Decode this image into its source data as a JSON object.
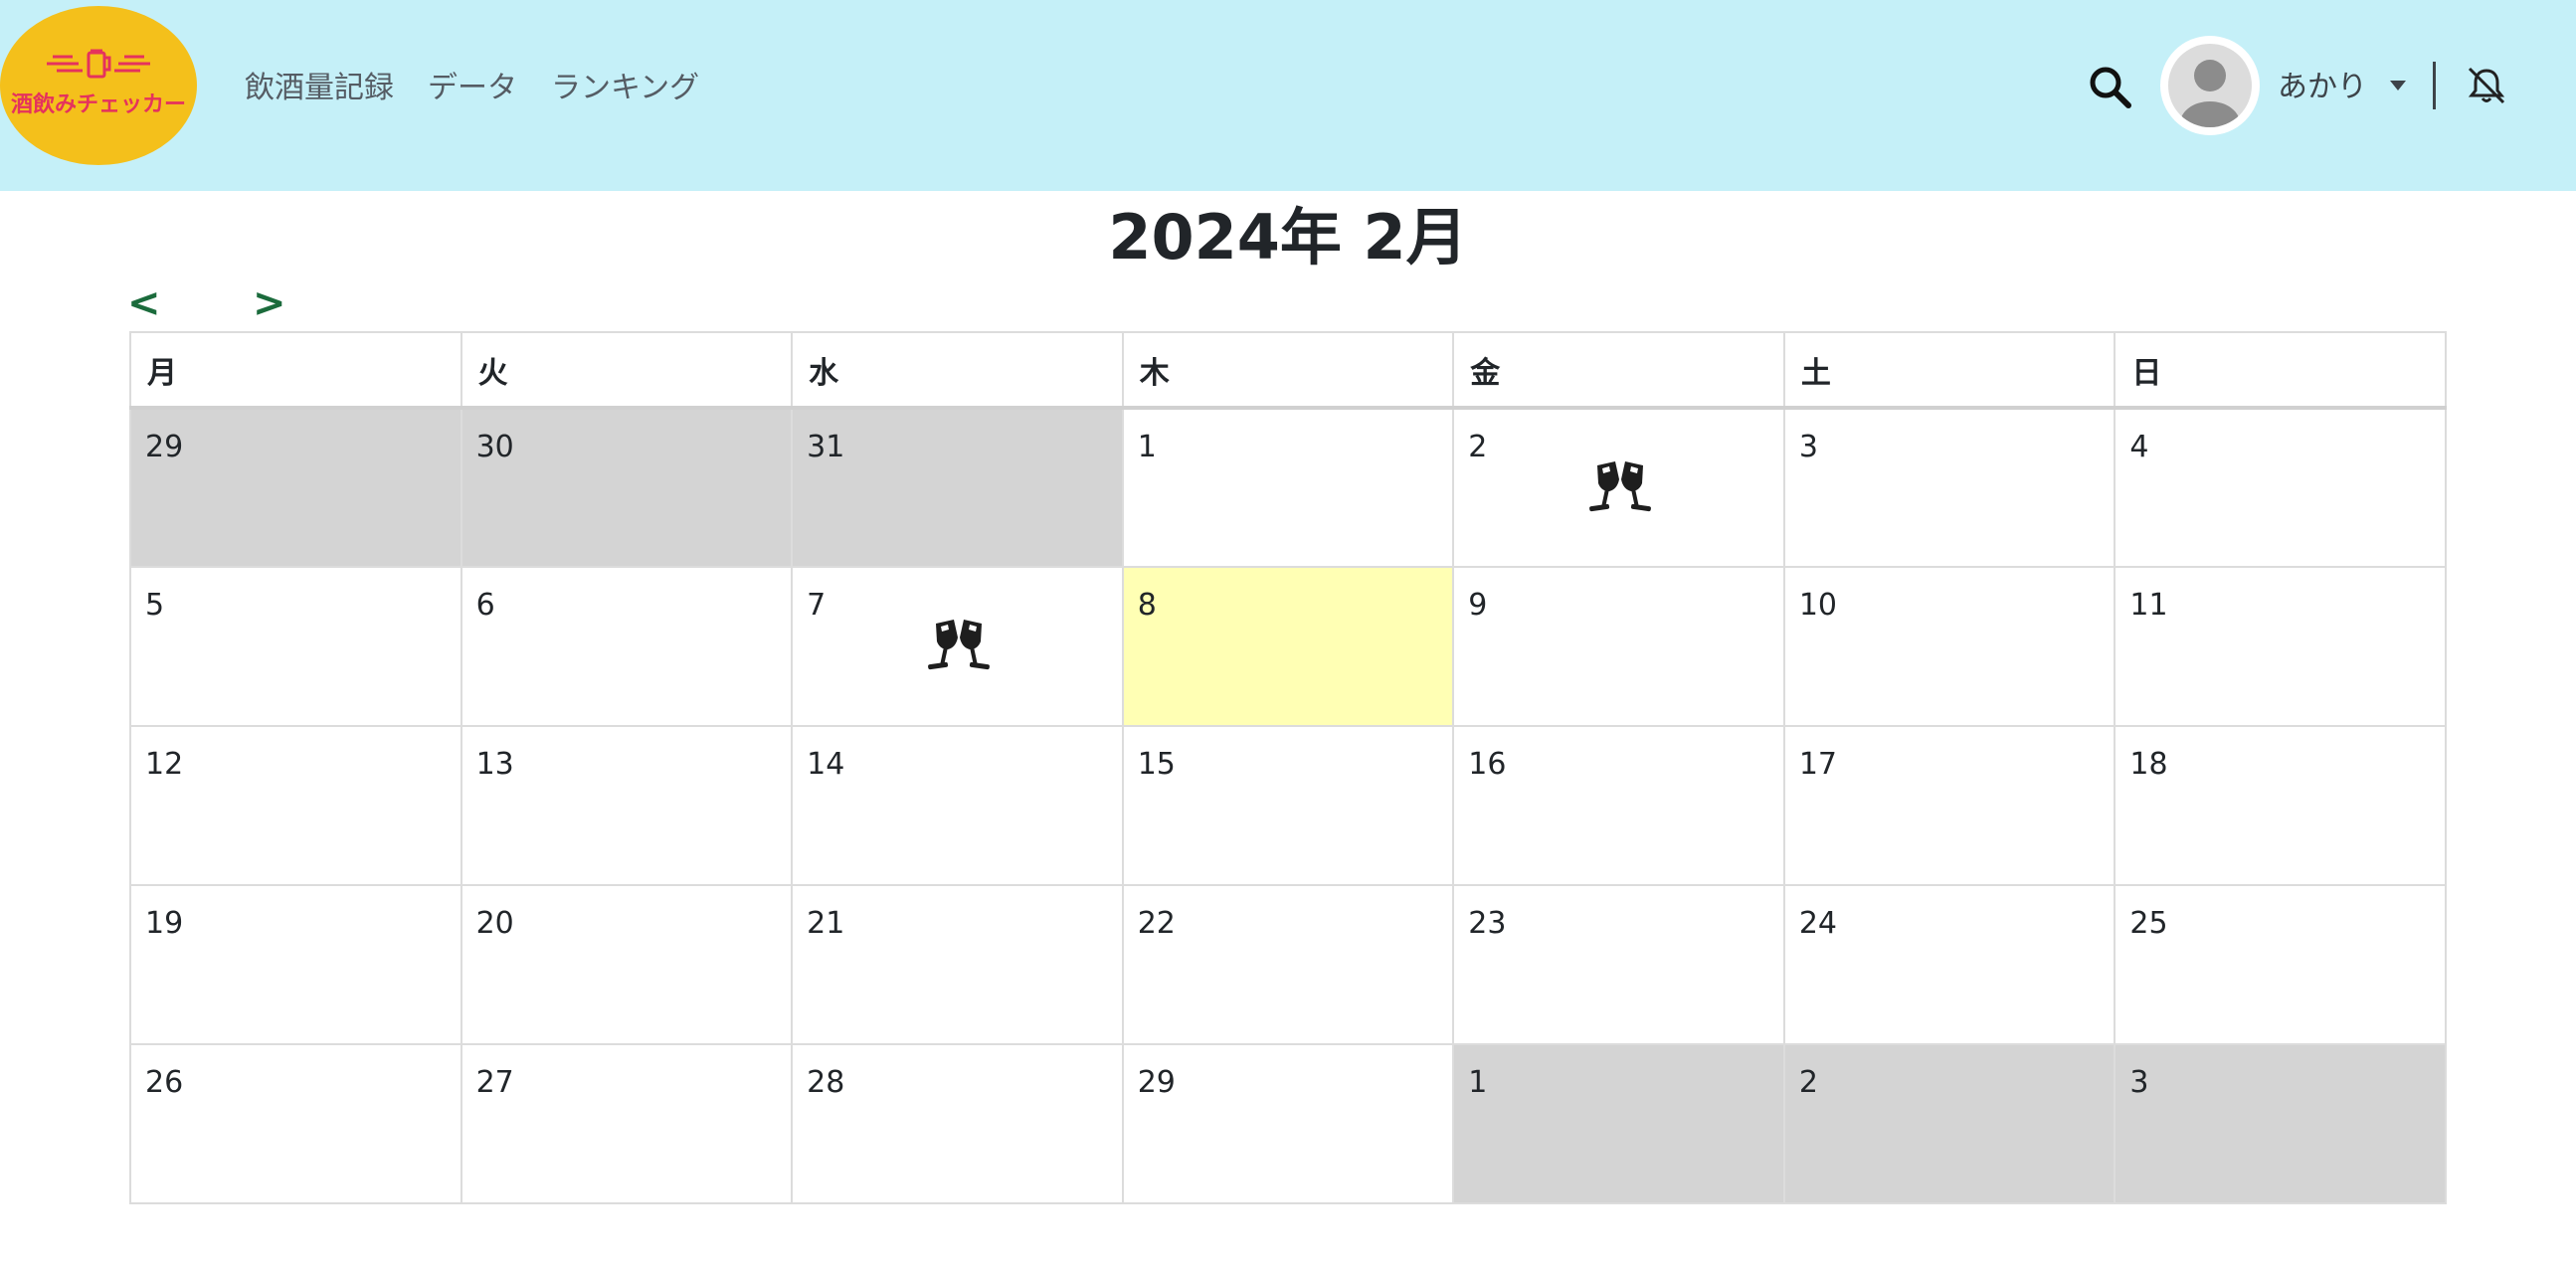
{
  "app": {
    "logo_text": "酒飲みチェッカー",
    "brand_color": "#f4c01b",
    "logo_text_color": "#e5325d",
    "navbar_color": "#c5f0f8"
  },
  "nav": {
    "links": [
      "飲酒量記録",
      "データ",
      "ランキング"
    ],
    "user_name": "あかり"
  },
  "calendar": {
    "title": "2024年 2月",
    "prev_label": "<",
    "next_label": ">",
    "weekdays": [
      "月",
      "火",
      "水",
      "木",
      "金",
      "土",
      "日"
    ],
    "weeks": [
      [
        {
          "d": "29",
          "o": true
        },
        {
          "d": "30",
          "o": true
        },
        {
          "d": "31",
          "o": true
        },
        {
          "d": "1"
        },
        {
          "d": "2",
          "drink": true
        },
        {
          "d": "3"
        },
        {
          "d": "4"
        }
      ],
      [
        {
          "d": "5"
        },
        {
          "d": "6"
        },
        {
          "d": "7",
          "drink": true
        },
        {
          "d": "8",
          "today": true
        },
        {
          "d": "9"
        },
        {
          "d": "10"
        },
        {
          "d": "11"
        }
      ],
      [
        {
          "d": "12"
        },
        {
          "d": "13"
        },
        {
          "d": "14"
        },
        {
          "d": "15"
        },
        {
          "d": "16"
        },
        {
          "d": "17"
        },
        {
          "d": "18"
        }
      ],
      [
        {
          "d": "19"
        },
        {
          "d": "20"
        },
        {
          "d": "21"
        },
        {
          "d": "22"
        },
        {
          "d": "23"
        },
        {
          "d": "24"
        },
        {
          "d": "25"
        }
      ],
      [
        {
          "d": "26"
        },
        {
          "d": "27"
        },
        {
          "d": "28"
        },
        {
          "d": "29"
        },
        {
          "d": "1",
          "o": true
        },
        {
          "d": "2",
          "o": true
        },
        {
          "d": "3",
          "o": true
        }
      ]
    ],
    "drink_icon": "glass-cheers-icon",
    "today_color": "#ffffb4",
    "other_month_color": "#d4d4d4"
  }
}
